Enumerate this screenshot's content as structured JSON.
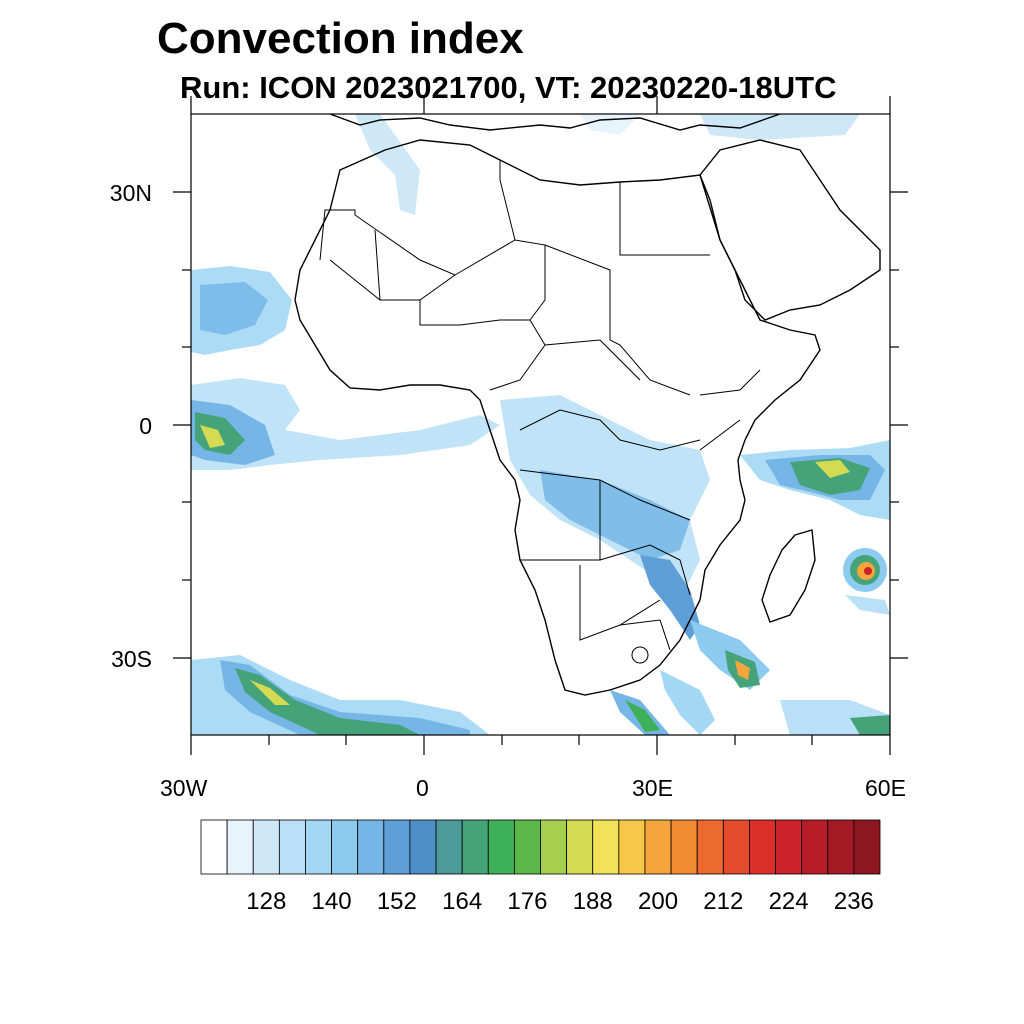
{
  "figure": {
    "title": "Convection index",
    "subtitle": "Run: ICON 2023021700,  VT: 20230220-18UTC"
  },
  "map": {
    "region": "Africa",
    "lon_range": [
      -30,
      60
    ],
    "lat_range": [
      -40,
      40
    ],
    "lat_tick_labels": [
      "30N",
      "0",
      "30S"
    ],
    "lon_tick_labels": [
      "30W",
      "0",
      "30E",
      "60E"
    ]
  },
  "colorbar": {
    "levels": [
      128,
      140,
      152,
      164,
      176,
      188,
      200,
      212,
      224,
      236
    ],
    "labels": [
      "128",
      "140",
      "152",
      "164",
      "176",
      "188",
      "200",
      "212",
      "224",
      "236"
    ],
    "colors": [
      "#ffffff",
      "#e8f4fc",
      "#cfe8f7",
      "#b9e0f6",
      "#a3d8f4",
      "#8ccbef",
      "#76b6e6",
      "#5f9fd8",
      "#4f8fc8",
      "#4c9a9a",
      "#45a37a",
      "#3fb05a",
      "#5ab84a",
      "#a6cf4e",
      "#d4db52",
      "#f0e35a",
      "#f7c848",
      "#f5a53c",
      "#f28a34",
      "#ec6a2e",
      "#e44b2a",
      "#dc2f2a",
      "#cc2229",
      "#b81d27",
      "#a31a24",
      "#8e1620"
    ]
  }
}
